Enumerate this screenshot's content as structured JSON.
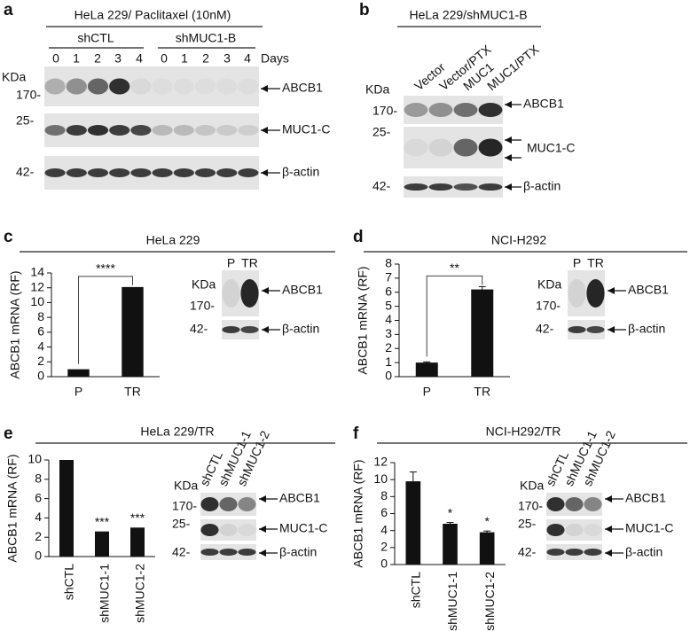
{
  "panels": {
    "a": {
      "letter": "a",
      "title": "HeLa 229/ Paclitaxel (10nM)",
      "groups": [
        "shCTL",
        "shMUC1-B"
      ],
      "lanes": [
        "0",
        "1",
        "2",
        "3",
        "4",
        "0",
        "1",
        "2",
        "3",
        "4"
      ],
      "lane_unit": "Days",
      "kda": "KDa",
      "markers": [
        "170-",
        "25-",
        "42-"
      ],
      "bands": [
        "ABCB1",
        "MUC1-C",
        "β-actin"
      ]
    },
    "b": {
      "letter": "b",
      "title": "HeLa 229/shMUC1-B",
      "lanes": [
        "Vector",
        "Vector/PTX",
        "MUC1",
        "MUC1/PTX"
      ],
      "kda": "KDa",
      "markers": [
        "170-",
        "25-",
        "42-"
      ],
      "bands": [
        "ABCB1",
        "MUC1-C",
        "β-actin"
      ]
    },
    "c": {
      "letter": "c",
      "lanes": [
        "P",
        "TR"
      ],
      "kda": "KDa",
      "markers": [
        "170-",
        "42-"
      ],
      "bands": [
        "ABCB1",
        "β-actin"
      ]
    },
    "d": {
      "letter": "d",
      "lanes": [
        "P",
        "TR"
      ],
      "kda": "KDa",
      "markers": [
        "170-",
        "42-"
      ],
      "bands": [
        "ABCB1",
        "β-actin"
      ]
    },
    "e": {
      "letter": "e",
      "lanes": [
        "shCTL",
        "shMUC1-1",
        "shMUC1-2"
      ],
      "kda": "KDa",
      "markers": [
        "170-",
        "25-",
        "42-"
      ],
      "bands": [
        "ABCB1",
        "MUC1-C",
        "β-actin"
      ]
    },
    "f": {
      "letter": "f",
      "lanes": [
        "shCTL",
        "shMUC1-1",
        "shMUC1-2"
      ],
      "kda": "KDa",
      "markers": [
        "170-",
        "25-",
        "42-"
      ],
      "bands": [
        "ABCB1",
        "MUC1-C",
        "β-actin"
      ]
    }
  },
  "chart_data": [
    {
      "type": "bar",
      "title": "HeLa 229",
      "y_label": "ABCB1 mRNA (RF)",
      "categories": [
        "P",
        "TR"
      ],
      "values": [
        1,
        12.1
      ],
      "color": "#111111",
      "ylim": [
        0,
        14
      ],
      "yticks": [
        0,
        2,
        4,
        6,
        8,
        10,
        12,
        14
      ],
      "significance": "****"
    },
    {
      "type": "bar",
      "title": "NCI-H292",
      "y_label": "ABCB1 mRNA (RF)",
      "categories": [
        "P",
        "TR"
      ],
      "values": [
        1,
        6.2
      ],
      "errors": [
        0.05,
        0.2
      ],
      "color": "#111111",
      "ylim": [
        0,
        8
      ],
      "yticks": [
        0,
        1,
        2,
        3,
        4,
        5,
        6,
        7,
        8
      ],
      "significance": "**"
    },
    {
      "type": "bar",
      "title": "HeLa 229/TR",
      "y_label": "ABCB1 mRNA (RF)",
      "categories": [
        "shCTL",
        "shMUC1-1",
        "shMUC1-2"
      ],
      "values": [
        10,
        2.6,
        3
      ],
      "color": "#111111",
      "ylim": [
        0,
        10
      ],
      "yticks": [
        0,
        2,
        4,
        6,
        8,
        10
      ],
      "value_annotations": [
        null,
        "***",
        "***"
      ]
    },
    {
      "type": "bar",
      "title": "NCI-H292/TR",
      "y_label": "ABCB1 mRNA (RF)",
      "categories": [
        "shCTL",
        "shMUC1-1",
        "shMUC1-2"
      ],
      "values": [
        9.8,
        4.8,
        3.8
      ],
      "errors": [
        1.1,
        0.15,
        0.15
      ],
      "color": "#111111",
      "ylim": [
        0,
        12
      ],
      "yticks": [
        0,
        2,
        4,
        6,
        8,
        10,
        12
      ],
      "value_annotations": [
        null,
        "*",
        "*"
      ]
    }
  ]
}
